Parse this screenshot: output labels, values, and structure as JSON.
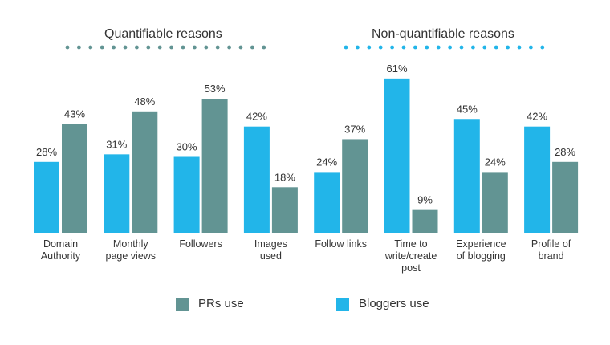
{
  "colors": {
    "prs": "#629493",
    "bloggers": "#22b5e9",
    "dots_left": "#629493",
    "dots_right": "#22b5e9",
    "axis": "#333333"
  },
  "groups": [
    {
      "title": "Quantifiable reasons"
    },
    {
      "title": "Non-quantifiable reasons"
    }
  ],
  "legend": [
    {
      "label": "PRs use"
    },
    {
      "label": "Bloggers use"
    }
  ],
  "chart_data": {
    "type": "bar",
    "categories": [
      "Domain Authority",
      "Monthly page views",
      "Followers",
      "Images used",
      "Follow links",
      "Time to write/create post",
      "Experience of blogging",
      "Profile of brand"
    ],
    "category_labels": [
      "Domain\nAuthority",
      "Monthly\npage views",
      "Followers",
      "Images\nused",
      "Follow links",
      "Time to\nwrite/create\npost",
      "Experience\nof blogging",
      "Profile of\nbrand"
    ],
    "series": [
      {
        "name": "Bloggers use",
        "values": [
          28,
          31,
          30,
          42,
          24,
          61,
          45,
          42
        ],
        "value_labels": [
          "28%",
          "31%",
          "30%",
          "42%",
          "24%",
          "61%",
          "45%",
          "42%"
        ]
      },
      {
        "name": "PRs use",
        "values": [
          43,
          48,
          53,
          18,
          37,
          9,
          24,
          28
        ],
        "value_labels": [
          "43%",
          "48%",
          "53%",
          "18%",
          "37%",
          "9%",
          "24%",
          "28%"
        ]
      }
    ],
    "unit": "%",
    "ylim": [
      0,
      61
    ],
    "legend_position": "bottom",
    "grid": false
  }
}
